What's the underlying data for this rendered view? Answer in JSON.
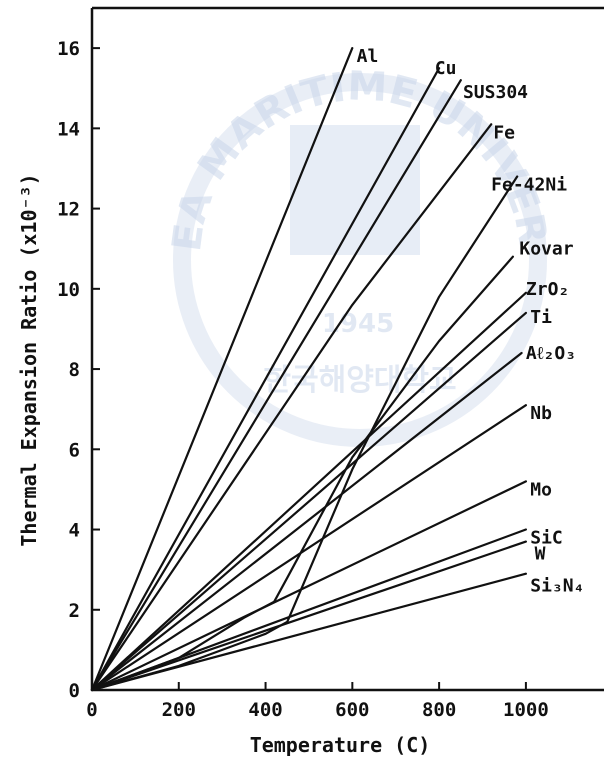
{
  "chart_data": {
    "type": "line",
    "title": "",
    "xlabel": "Temperature  (C)",
    "ylabel": "Thermal Expansion Ratio (x10⁻³)",
    "xlim": [
      0,
      1180
    ],
    "ylim": [
      0,
      17
    ],
    "x_ticks": [
      "0",
      "200",
      "400",
      "600",
      "800",
      "1000"
    ],
    "y_ticks": [
      "0",
      "2",
      "4",
      "6",
      "8",
      "10",
      "12",
      "14",
      "16"
    ],
    "grid": false,
    "watermark": {
      "arc_text": "KOREA MARITIME UNIVERSITY",
      "year": "1945",
      "korean": "한국해양대학교"
    },
    "series": [
      {
        "name": "Al",
        "x": [
          0,
          600
        ],
        "y": [
          0,
          16.0
        ],
        "label_at": [
          610,
          15.8
        ]
      },
      {
        "name": "Cu",
        "x": [
          0,
          800
        ],
        "y": [
          0,
          15.5
        ],
        "label_at": [
          790,
          15.5
        ]
      },
      {
        "name": "SUS304",
        "x": [
          0,
          850
        ],
        "y": [
          0,
          15.2
        ],
        "label_at": [
          855,
          14.9
        ]
      },
      {
        "name": "Fe",
        "x": [
          0,
          600,
          920
        ],
        "y": [
          0,
          9.6,
          14.1
        ],
        "label_at": [
          925,
          13.9
        ]
      },
      {
        "name": "Fe-42Ni",
        "x": [
          0,
          200,
          350,
          400,
          450,
          600,
          800,
          980
        ],
        "y": [
          0,
          0.6,
          1.2,
          1.4,
          1.7,
          5.5,
          9.8,
          12.8
        ],
        "label_at": [
          920,
          12.6
        ]
      },
      {
        "name": "Kovar",
        "x": [
          0,
          200,
          350,
          420,
          450,
          600,
          800,
          970
        ],
        "y": [
          0,
          0.8,
          1.8,
          2.2,
          2.8,
          5.8,
          8.7,
          10.8
        ],
        "label_at": [
          985,
          11.0
        ]
      },
      {
        "name": "ZrO₂",
        "x": [
          0,
          1000
        ],
        "y": [
          0,
          9.9
        ],
        "label_at": [
          1000,
          10.0
        ]
      },
      {
        "name": "Ti",
        "x": [
          0,
          1000
        ],
        "y": [
          0,
          9.4
        ],
        "label_at": [
          1010,
          9.3
        ]
      },
      {
        "name": "Aℓ₂O₃",
        "x": [
          0,
          990
        ],
        "y": [
          0,
          8.4
        ],
        "label_at": [
          1000,
          8.4
        ]
      },
      {
        "name": "Nb",
        "x": [
          0,
          1000
        ],
        "y": [
          0,
          7.1
        ],
        "label_at": [
          1010,
          6.9
        ]
      },
      {
        "name": "Mo",
        "x": [
          0,
          1000
        ],
        "y": [
          0,
          5.2
        ],
        "label_at": [
          1010,
          5.0
        ]
      },
      {
        "name": "SiC",
        "x": [
          0,
          1000
        ],
        "y": [
          0,
          4.0
        ],
        "label_at": [
          1010,
          3.8
        ]
      },
      {
        "name": "W",
        "x": [
          0,
          1000
        ],
        "y": [
          0,
          3.7
        ],
        "label_at": [
          1020,
          3.4
        ]
      },
      {
        "name": "Si₃N₄",
        "x": [
          0,
          1000
        ],
        "y": [
          0,
          2.9
        ],
        "label_at": [
          1010,
          2.6
        ]
      }
    ]
  }
}
